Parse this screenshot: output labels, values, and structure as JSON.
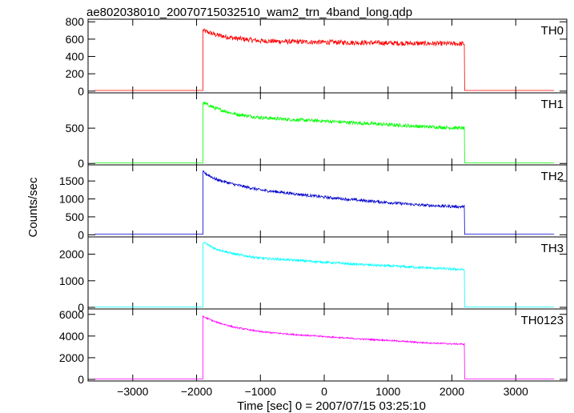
{
  "chart_data": {
    "type": "line",
    "title": "ae802038010_20070715032510_wam2_trn_4band_long.qdp",
    "xlabel": "Time [sec] 0 = 2007/07/15 03:25:10",
    "ylabel": "Counts/sec",
    "xlim": [
      -3700,
      3800
    ],
    "xticks": [
      -3000,
      -2000,
      -1000,
      0,
      1000,
      2000,
      3000
    ],
    "xtick_labels": [
      "−3000",
      "−2000",
      "−1000",
      "0",
      "1000",
      "2000",
      "3000"
    ],
    "grid": false,
    "on_window": [
      -1900,
      2200
    ],
    "x_data_range": [
      -3600,
      3600
    ],
    "panels": [
      {
        "name": "TH0",
        "color": "#ff0000",
        "ylim": [
          -20,
          830
        ],
        "yticks": [
          0,
          200,
          400,
          600,
          800
        ],
        "ytick_labels": [
          "0",
          "200",
          "400",
          "600",
          "800"
        ],
        "off_level": 8,
        "noise": 28,
        "points": [
          [
            -1900,
            700
          ],
          [
            -1700,
            650
          ],
          [
            -1400,
            610
          ],
          [
            -1000,
            580
          ],
          [
            -500,
            570
          ],
          [
            0,
            565
          ],
          [
            500,
            560
          ],
          [
            1000,
            555
          ],
          [
            1500,
            550
          ],
          [
            2000,
            548
          ],
          [
            2200,
            545
          ]
        ]
      },
      {
        "name": "TH1",
        "color": "#00ff00",
        "ylim": [
          -20,
          1000
        ],
        "yticks": [
          0,
          500
        ],
        "ytick_labels": [
          "0",
          "500"
        ],
        "off_level": 8,
        "noise": 25,
        "points": [
          [
            -1900,
            860
          ],
          [
            -1700,
            780
          ],
          [
            -1400,
            700
          ],
          [
            -1000,
            650
          ],
          [
            -500,
            620
          ],
          [
            0,
            600
          ],
          [
            500,
            575
          ],
          [
            1000,
            550
          ],
          [
            1500,
            525
          ],
          [
            2000,
            505
          ],
          [
            2200,
            500
          ]
        ]
      },
      {
        "name": "TH2",
        "color": "#0000cc",
        "ylim": [
          -60,
          1950
        ],
        "yticks": [
          0,
          500,
          1000,
          1500
        ],
        "ytick_labels": [
          "0",
          "500",
          "1000",
          "1500"
        ],
        "off_level": 15,
        "noise": 40,
        "points": [
          [
            -1900,
            1750
          ],
          [
            -1700,
            1550
          ],
          [
            -1400,
            1400
          ],
          [
            -1000,
            1250
          ],
          [
            -500,
            1150
          ],
          [
            0,
            1050
          ],
          [
            500,
            970
          ],
          [
            1000,
            900
          ],
          [
            1500,
            830
          ],
          [
            2000,
            790
          ],
          [
            2200,
            780
          ]
        ]
      },
      {
        "name": "TH3",
        "color": "#00ffff",
        "ylim": [
          -60,
          2650
        ],
        "yticks": [
          0,
          1000,
          2000
        ],
        "ytick_labels": [
          "0",
          "1000",
          "2000"
        ],
        "off_level": 15,
        "noise": 45,
        "points": [
          [
            -1900,
            2450
          ],
          [
            -1700,
            2200
          ],
          [
            -1400,
            2000
          ],
          [
            -1000,
            1850
          ],
          [
            -500,
            1780
          ],
          [
            0,
            1700
          ],
          [
            500,
            1620
          ],
          [
            1000,
            1560
          ],
          [
            1500,
            1500
          ],
          [
            2000,
            1440
          ],
          [
            2200,
            1420
          ]
        ]
      },
      {
        "name": "TH0123",
        "color": "#ff00ff",
        "ylim": [
          -150,
          6500
        ],
        "yticks": [
          0,
          2000,
          4000,
          6000
        ],
        "ytick_labels": [
          "0",
          "2000",
          "4000",
          "6000"
        ],
        "off_level": 40,
        "noise": 70,
        "points": [
          [
            -1900,
            5800
          ],
          [
            -1700,
            5300
          ],
          [
            -1400,
            4800
          ],
          [
            -1000,
            4400
          ],
          [
            -500,
            4150
          ],
          [
            0,
            3950
          ],
          [
            500,
            3750
          ],
          [
            1000,
            3600
          ],
          [
            1500,
            3400
          ],
          [
            2000,
            3280
          ],
          [
            2200,
            3250
          ]
        ]
      }
    ]
  }
}
